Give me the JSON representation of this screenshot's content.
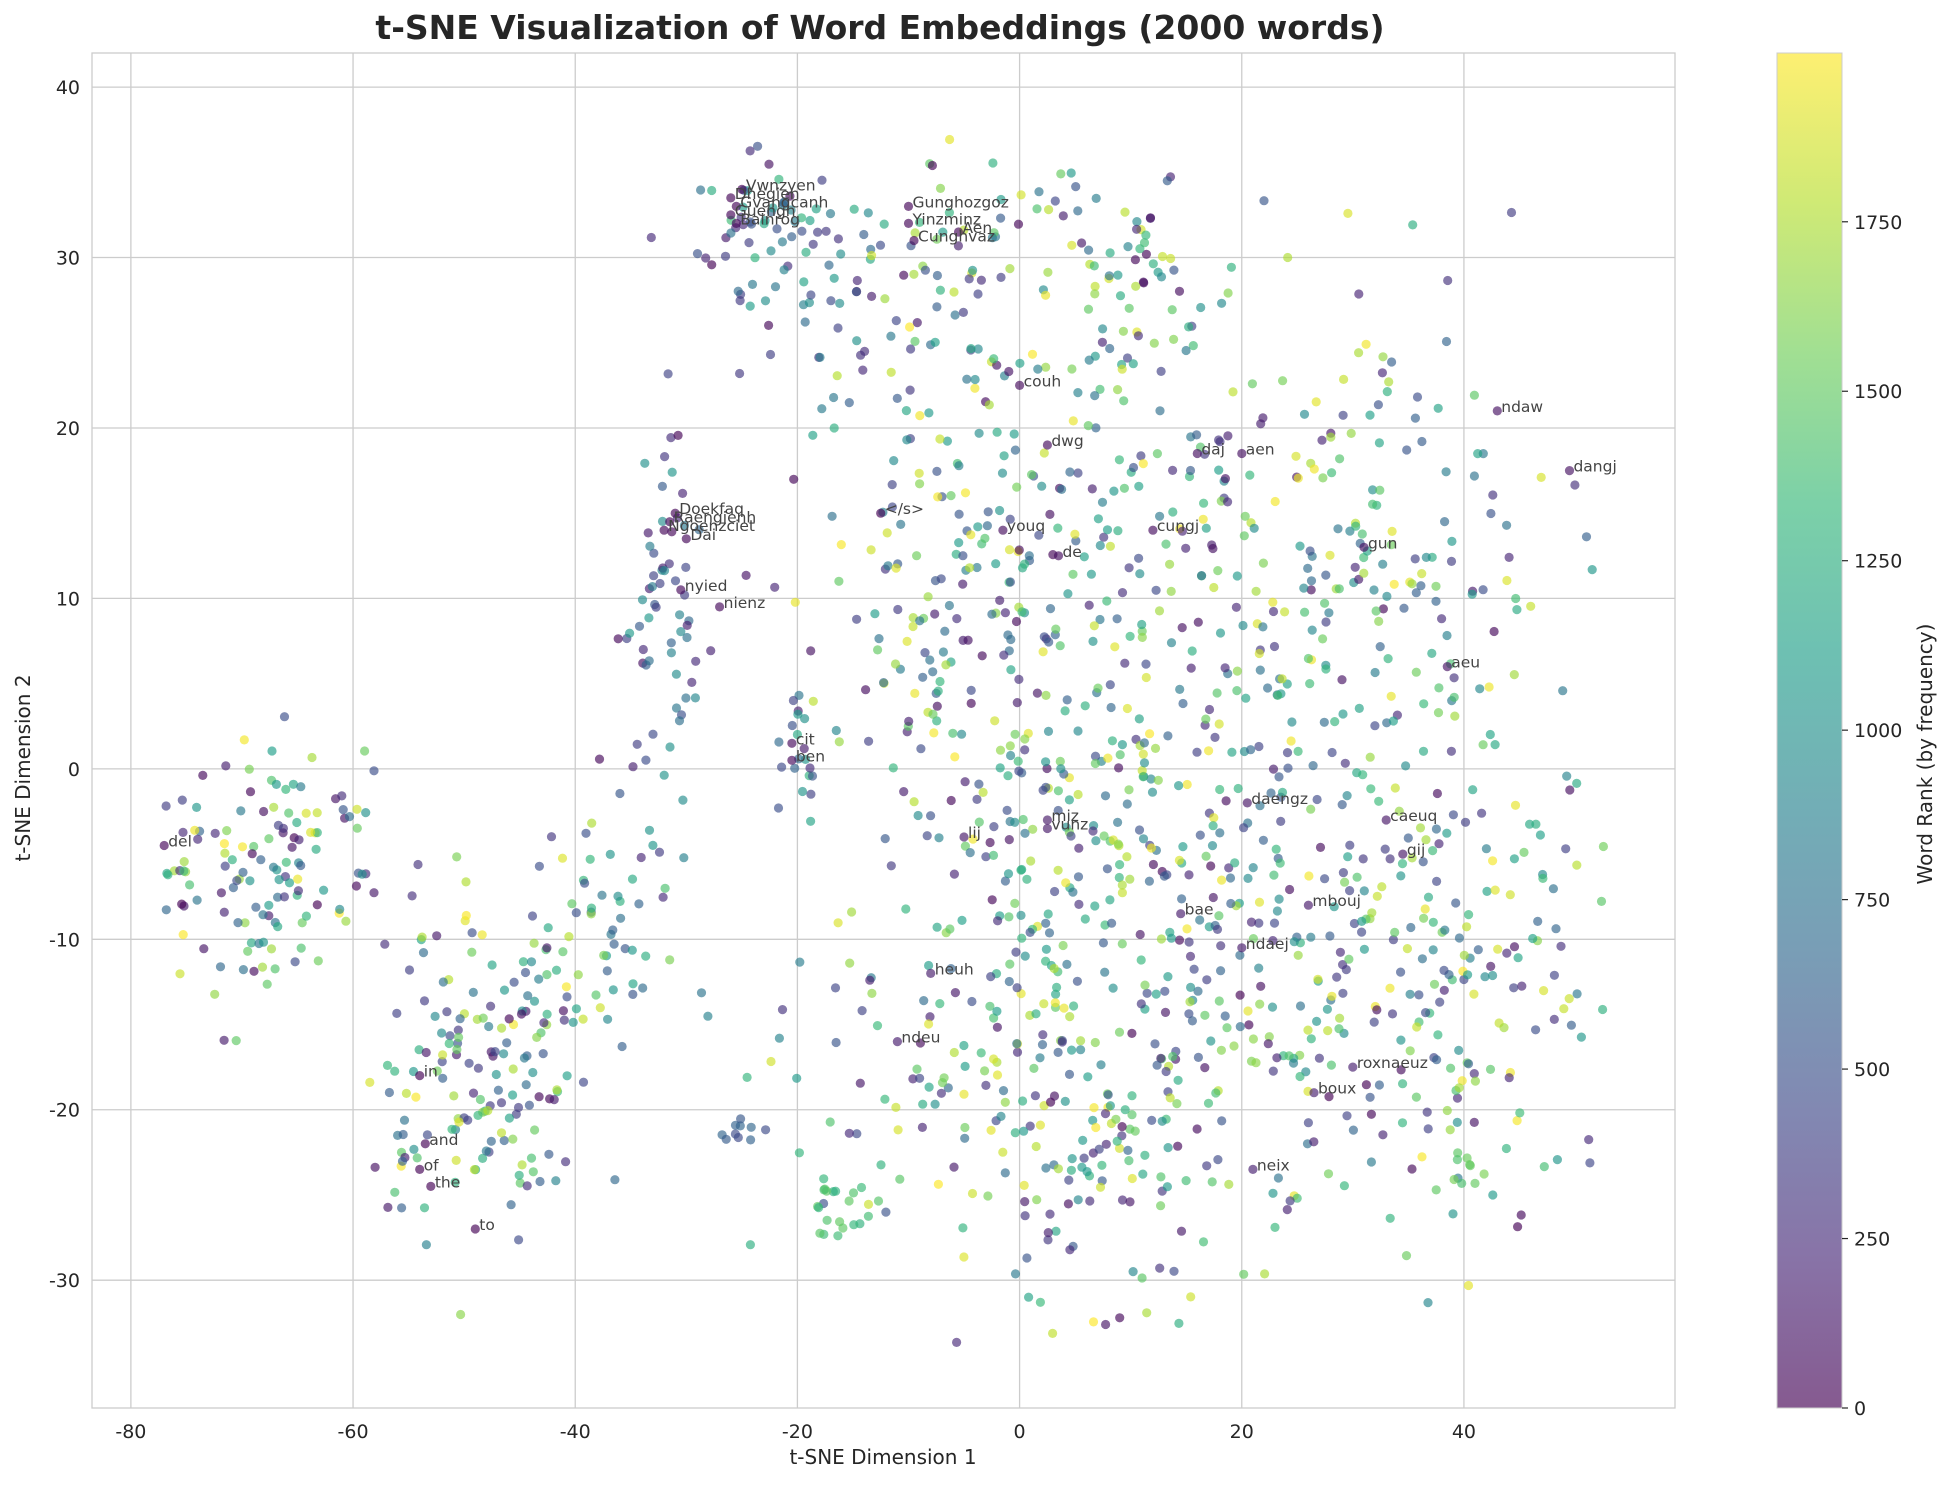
{
  "chart_data": {
    "type": "scatter",
    "title": "t-SNE Visualization of Word Embeddings (2000 words)",
    "xlabel": "t-SNE Dimension 1",
    "ylabel": "t-SNE Dimension 2",
    "xlim": [
      -83.5,
      59
    ],
    "ylim": [
      -37.5,
      42
    ],
    "xticks": [
      -80,
      -60,
      -40,
      -20,
      0,
      20,
      40
    ],
    "yticks": [
      -30,
      -20,
      -10,
      0,
      10,
      20,
      30,
      40
    ],
    "grid": true,
    "colorbar": {
      "label": "Word Rank (by frequency)",
      "range": [
        0,
        1999
      ],
      "ticks": [
        0,
        250,
        500,
        750,
        1000,
        1250,
        1500,
        1750
      ],
      "colormap": "viridis",
      "alpha": 0.6
    },
    "point_count": 2000,
    "labeled_points": [
      {
        "x": -77,
        "y": -4.5,
        "rank": 30,
        "label": "del"
      },
      {
        "x": -54,
        "y": -18,
        "rank": 5,
        "label": "in"
      },
      {
        "x": -53.5,
        "y": -22,
        "rank": 3,
        "label": "and"
      },
      {
        "x": -54,
        "y": -23.5,
        "rank": 2,
        "label": "of"
      },
      {
        "x": -53,
        "y": -24.5,
        "rank": 1,
        "label": "the"
      },
      {
        "x": -49,
        "y": -27,
        "rank": 4,
        "label": "to"
      },
      {
        "x": -31,
        "y": 15,
        "rank": 20,
        "label": "Doekfaq"
      },
      {
        "x": -31.5,
        "y": 14.5,
        "rank": 22,
        "label": "Raengienh"
      },
      {
        "x": -32,
        "y": 14,
        "rank": 24,
        "label": "Ngoenzciet"
      },
      {
        "x": -30,
        "y": 13.5,
        "rank": 26,
        "label": "Dai"
      },
      {
        "x": -30.5,
        "y": 10.5,
        "rank": 40,
        "label": "nyied"
      },
      {
        "x": -27,
        "y": 9.5,
        "rank": 45,
        "label": "nienz"
      },
      {
        "x": -25,
        "y": 34,
        "rank": 14,
        "label": "Vwnzyen"
      },
      {
        "x": -26,
        "y": 33.5,
        "rank": 15,
        "label": "Dhegien"
      },
      {
        "x": -25.5,
        "y": 33,
        "rank": 16,
        "label": "Gvangcanh"
      },
      {
        "x": -26,
        "y": 32.5,
        "rank": 17,
        "label": "Guengh"
      },
      {
        "x": -25.5,
        "y": 32,
        "rank": 18,
        "label": "Bainrog"
      },
      {
        "x": -10,
        "y": 33,
        "rank": 19,
        "label": "Gunghozgoz"
      },
      {
        "x": -10,
        "y": 32,
        "rank": 21,
        "label": "Yinzminz"
      },
      {
        "x": -5.5,
        "y": 31.5,
        "rank": 23,
        "label": "Aen"
      },
      {
        "x": -9.5,
        "y": 31,
        "rank": 25,
        "label": "Cunghvaz"
      },
      {
        "x": 0,
        "y": 22.5,
        "rank": 50,
        "label": "couh"
      },
      {
        "x": 2.5,
        "y": 19,
        "rank": 55,
        "label": "dwg"
      },
      {
        "x": -12.5,
        "y": 15,
        "rank": 0,
        "label": "</s>"
      },
      {
        "x": -1.5,
        "y": 14,
        "rank": 60,
        "label": "youq"
      },
      {
        "x": 3.5,
        "y": 12.5,
        "rank": 65,
        "label": "de"
      },
      {
        "x": 12,
        "y": 14,
        "rank": 70,
        "label": "cungj"
      },
      {
        "x": 16,
        "y": 18.5,
        "rank": 75,
        "label": "daj"
      },
      {
        "x": 20,
        "y": 18.5,
        "rank": 80,
        "label": "aen"
      },
      {
        "x": 31,
        "y": 13,
        "rank": 85,
        "label": "gun"
      },
      {
        "x": 43,
        "y": 21,
        "rank": 90,
        "label": "ndaw"
      },
      {
        "x": 49.5,
        "y": 17.5,
        "rank": 95,
        "label": "dangj"
      },
      {
        "x": 38.5,
        "y": 6,
        "rank": 100,
        "label": "aeu"
      },
      {
        "x": -20.5,
        "y": 1.5,
        "rank": 35,
        "label": "cit"
      },
      {
        "x": -20.5,
        "y": 0.5,
        "rank": 36,
        "label": "ben"
      },
      {
        "x": 20.5,
        "y": -2,
        "rank": 110,
        "label": "daengz"
      },
      {
        "x": 33,
        "y": -3,
        "rank": 115,
        "label": "caeuq"
      },
      {
        "x": 34.5,
        "y": -5,
        "rank": 120,
        "label": "gij"
      },
      {
        "x": -5,
        "y": -4,
        "rank": 125,
        "label": "lij"
      },
      {
        "x": 2.5,
        "y": -3,
        "rank": 130,
        "label": "miz"
      },
      {
        "x": 2.5,
        "y": -3.5,
        "rank": 131,
        "label": "vunz"
      },
      {
        "x": 26,
        "y": -8,
        "rank": 135,
        "label": "mbouj"
      },
      {
        "x": 14.5,
        "y": -8.5,
        "rank": 140,
        "label": "bae"
      },
      {
        "x": 20,
        "y": -10.5,
        "rank": 145,
        "label": "ndaej"
      },
      {
        "x": -8,
        "y": -12,
        "rank": 150,
        "label": "heuh"
      },
      {
        "x": -11,
        "y": -16,
        "rank": 155,
        "label": "ndeu"
      },
      {
        "x": 30,
        "y": -17.5,
        "rank": 160,
        "label": "roxnaeuz"
      },
      {
        "x": 26.5,
        "y": -19,
        "rank": 165,
        "label": "boux"
      },
      {
        "x": 21,
        "y": -23.5,
        "rank": 170,
        "label": "neix"
      }
    ]
  }
}
